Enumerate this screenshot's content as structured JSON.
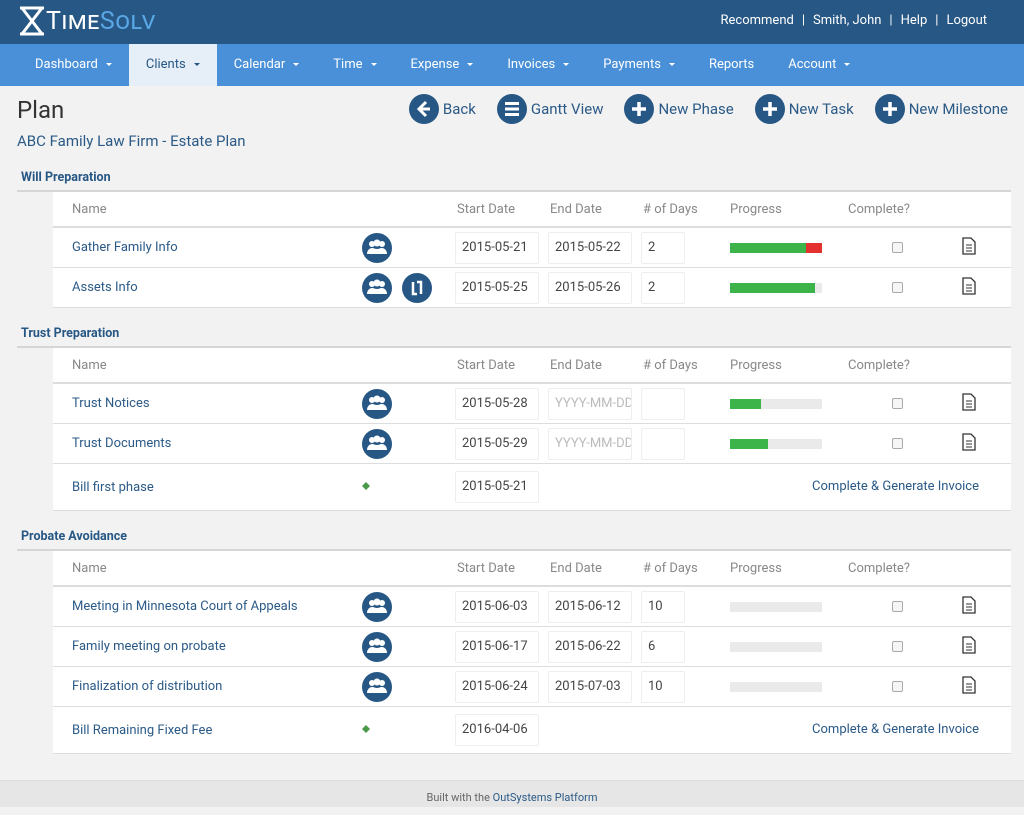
{
  "header": {
    "logo": [
      "Time",
      "Solv"
    ],
    "links": [
      "Recommend",
      "Smith, John",
      "Help",
      "Logout"
    ]
  },
  "nav": [
    "Dashboard",
    "Clients",
    "Calendar",
    "Time",
    "Expense",
    "Invoices",
    "Payments",
    "Reports",
    "Account"
  ],
  "page": {
    "title": "Plan",
    "subtitle": "ABC Family Law Firm - Estate Plan",
    "actions": [
      "Back",
      "Gantt View",
      "New Phase",
      "New Task",
      "New Milestone"
    ]
  },
  "columns": [
    "Name",
    "Start Date",
    "End Date",
    "# of Days",
    "Progress",
    "Complete?"
  ],
  "placeholder": "YYYY-MM-DD",
  "sections": [
    {
      "title": "Will Preparation",
      "rows": [
        {
          "name": "Gather Family Info",
          "start": "2015-05-21",
          "end": "2015-05-22",
          "days": 2,
          "progress": 83,
          "overdue": 17
        },
        {
          "name": "Assets Info",
          "start": "2015-05-25",
          "end": "2015-05-26",
          "days": 2,
          "progress": 92
        }
      ]
    },
    {
      "title": "Trust Preparation",
      "rows": [
        {
          "name": "Trust Notices",
          "start": "2015-05-28",
          "progress": 34
        },
        {
          "name": "Trust Documents",
          "start": "2015-05-29",
          "progress": 41
        },
        {
          "name": "Bill first phase",
          "start": "2015-05-21",
          "action": "Complete & Generate Invoice"
        }
      ]
    },
    {
      "title": "Probate Avoidance",
      "rows": [
        {
          "name": "Meeting in Minnesota Court of Appeals",
          "start": "2015-06-03",
          "end": "2015-06-12",
          "days": 10,
          "progress": 0
        },
        {
          "name": "Family meeting on probate",
          "start": "2015-06-17",
          "end": "2015-06-22",
          "days": 6,
          "progress": 0
        },
        {
          "name": "Finalization of distribution",
          "start": "2015-06-24",
          "end": "2015-07-03",
          "days": 10,
          "progress": 0
        },
        {
          "name": "Bill Remaining Fixed Fee",
          "start": "2016-04-06",
          "action": "Complete & Generate Invoice"
        }
      ]
    }
  ],
  "footer": {
    "text": "Built with the",
    "link": "OutSystems Platform"
  }
}
